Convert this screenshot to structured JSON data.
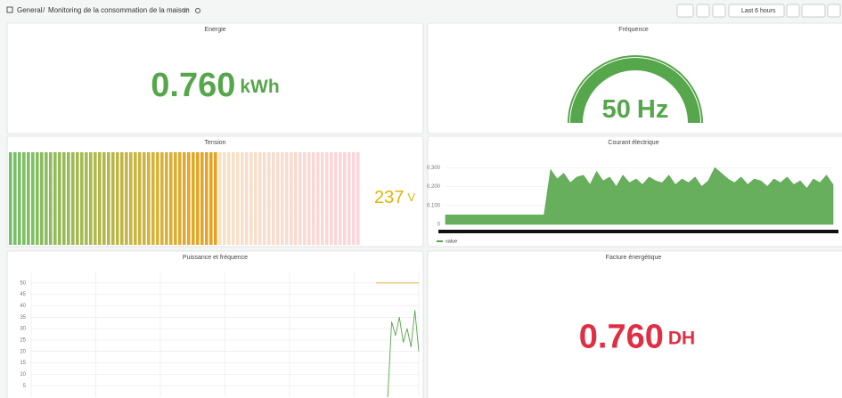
{
  "header": {
    "root": "General",
    "separator": "/",
    "title": "Monitoring de la consommation de la maison",
    "time_range": "Last 6 hours"
  },
  "chart_data": [
    {
      "type": "stat",
      "title": "Energie",
      "values": [
        0.76
      ],
      "value_labels": [
        "0.760"
      ],
      "unit": "kWh",
      "color": "#56a64b"
    },
    {
      "type": "gauge",
      "title": "Fréquence",
      "values": [
        50
      ],
      "unit": "Hz",
      "ylim": [
        0,
        50
      ],
      "color": "#56a64b"
    },
    {
      "type": "bargauge",
      "title": "Tension",
      "values": [
        237
      ],
      "unit": "V",
      "ylim": [
        0,
        400
      ],
      "color": "#e0b400"
    },
    {
      "type": "area",
      "title": "Courant électrique",
      "grid": true,
      "x": [
        0,
        1,
        2,
        3,
        4,
        5,
        6,
        7,
        8,
        9,
        10,
        11,
        12,
        13,
        14,
        15,
        16,
        17,
        18,
        19,
        20,
        21,
        22,
        23,
        24,
        25,
        26,
        27,
        28,
        29,
        30,
        31,
        32,
        33,
        34,
        35,
        36,
        37,
        38,
        39,
        40,
        41,
        42,
        43,
        44,
        45,
        46,
        47,
        48,
        49,
        50,
        51,
        52,
        53,
        54,
        55,
        56,
        57,
        58,
        59
      ],
      "xlim": [
        0,
        59
      ],
      "ylim": [
        0,
        0.32
      ],
      "yticks": [
        0,
        {
          "value": 0.1,
          "label": "0.100"
        },
        {
          "value": 0.2,
          "label": "0.200"
        },
        {
          "value": 0.3,
          "label": "0.300"
        }
      ],
      "series": [
        {
          "name": "value",
          "color": "#56a64b",
          "values": [
            0.05,
            0.05,
            0.05,
            0.05,
            0.05,
            0.05,
            0.05,
            0.05,
            0.05,
            0.05,
            0.05,
            0.05,
            0.05,
            0.05,
            0.05,
            0.05,
            0.29,
            0.24,
            0.27,
            0.22,
            0.25,
            0.26,
            0.21,
            0.28,
            0.23,
            0.25,
            0.2,
            0.26,
            0.22,
            0.24,
            0.21,
            0.25,
            0.23,
            0.22,
            0.26,
            0.21,
            0.24,
            0.22,
            0.25,
            0.2,
            0.23,
            0.3,
            0.27,
            0.24,
            0.22,
            0.25,
            0.21,
            0.24,
            0.23,
            0.2,
            0.24,
            0.22,
            0.25,
            0.21,
            0.23,
            0.19,
            0.24,
            0.22,
            0.26,
            0.21
          ]
        }
      ]
    },
    {
      "type": "line",
      "title": "Puissance et fréquence",
      "grid": true,
      "x": [
        89,
        90,
        91,
        92,
        93,
        94,
        95,
        96,
        97,
        98,
        99,
        100
      ],
      "xlim": [
        0,
        100
      ],
      "ylim": [
        0,
        55
      ],
      "yticks": [
        5,
        10,
        15,
        20,
        25,
        30,
        35,
        40,
        45,
        50
      ],
      "series": [
        {
          "color": "#e0a030",
          "values": [
            50,
            50,
            50,
            50,
            50,
            50,
            50,
            50,
            50,
            50,
            50,
            50
          ]
        },
        {
          "color": "#56a64b",
          "values": [
            null,
            null,
            null,
            0,
            33,
            27,
            35,
            24,
            30,
            22,
            38,
            20
          ]
        }
      ]
    },
    {
      "type": "stat",
      "title": "Facture énergétique",
      "values": [
        0.76
      ],
      "value_labels": [
        "0.760"
      ],
      "unit": "DH",
      "color": "#e02f44"
    }
  ]
}
